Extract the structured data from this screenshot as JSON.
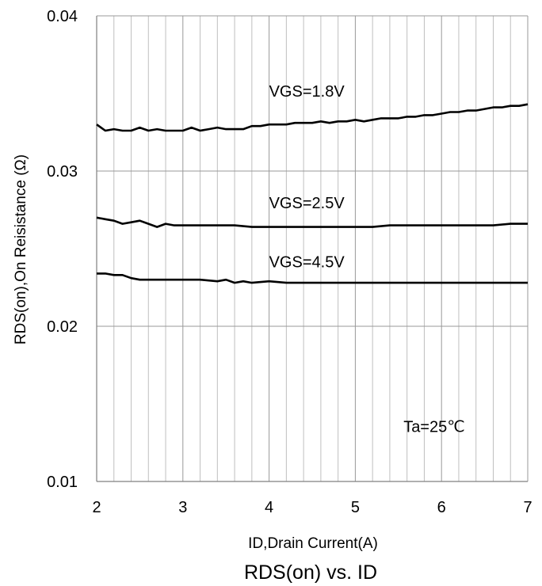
{
  "chart_data": {
    "type": "line",
    "title": "RDS(on) vs. ID",
    "xlabel": "ID,Drain Current(A)",
    "ylabel": "RDS(on),On Reisistance (Ω)",
    "xlim": [
      2,
      7
    ],
    "ylim": [
      0.01,
      0.04
    ],
    "x_ticks": [
      2,
      3,
      4,
      5,
      6,
      7
    ],
    "x_tick_labels": [
      "2",
      "3",
      "4",
      "5",
      "6",
      "7"
    ],
    "y_ticks": [
      0.01,
      0.02,
      0.03,
      0.04
    ],
    "y_tick_labels": [
      "0.01",
      "0.02",
      "0.03",
      "0.04"
    ],
    "grid": true,
    "annotation": "Ta=25℃",
    "series": [
      {
        "name": "VGS=1.8V",
        "x": [
          2.0,
          2.1,
          2.2,
          2.3,
          2.4,
          2.5,
          2.6,
          2.7,
          2.8,
          2.9,
          3.0,
          3.1,
          3.2,
          3.3,
          3.4,
          3.5,
          3.6,
          3.7,
          3.8,
          3.9,
          4.0,
          4.1,
          4.2,
          4.3,
          4.4,
          4.5,
          4.6,
          4.7,
          4.8,
          4.9,
          5.0,
          5.1,
          5.2,
          5.3,
          5.4,
          5.5,
          5.6,
          5.7,
          5.8,
          5.9,
          6.0,
          6.1,
          6.2,
          6.3,
          6.4,
          6.5,
          6.6,
          6.7,
          6.8,
          6.9,
          7.0
        ],
        "values": [
          0.033,
          0.0326,
          0.0327,
          0.0326,
          0.0326,
          0.0328,
          0.0326,
          0.0327,
          0.0326,
          0.0326,
          0.0326,
          0.0328,
          0.0326,
          0.0327,
          0.0328,
          0.0327,
          0.0327,
          0.0327,
          0.0329,
          0.0329,
          0.033,
          0.033,
          0.033,
          0.0331,
          0.0331,
          0.0331,
          0.0332,
          0.0331,
          0.0332,
          0.0332,
          0.0333,
          0.0332,
          0.0333,
          0.0334,
          0.0334,
          0.0334,
          0.0335,
          0.0335,
          0.0336,
          0.0336,
          0.0337,
          0.0338,
          0.0338,
          0.0339,
          0.0339,
          0.034,
          0.0341,
          0.0341,
          0.0342,
          0.0342,
          0.0343
        ]
      },
      {
        "name": "VGS=2.5V",
        "x": [
          2.0,
          2.1,
          2.2,
          2.3,
          2.4,
          2.5,
          2.6,
          2.7,
          2.8,
          2.9,
          3.0,
          3.2,
          3.4,
          3.6,
          3.8,
          4.0,
          4.2,
          4.4,
          4.6,
          4.8,
          5.0,
          5.2,
          5.4,
          5.6,
          5.8,
          6.0,
          6.2,
          6.4,
          6.6,
          6.8,
          7.0
        ],
        "values": [
          0.027,
          0.0269,
          0.0268,
          0.0266,
          0.0267,
          0.0268,
          0.0266,
          0.0264,
          0.0266,
          0.0265,
          0.0265,
          0.0265,
          0.0265,
          0.0265,
          0.0264,
          0.0264,
          0.0264,
          0.0264,
          0.0264,
          0.0264,
          0.0264,
          0.0264,
          0.0265,
          0.0265,
          0.0265,
          0.0265,
          0.0265,
          0.0265,
          0.0265,
          0.0266,
          0.0266
        ]
      },
      {
        "name": "VGS=4.5V",
        "x": [
          2.0,
          2.1,
          2.2,
          2.3,
          2.4,
          2.5,
          2.6,
          2.7,
          2.8,
          2.9,
          3.0,
          3.2,
          3.4,
          3.5,
          3.6,
          3.7,
          3.8,
          4.0,
          4.2,
          4.4,
          4.6,
          4.8,
          5.0,
          5.2,
          5.4,
          5.6,
          5.8,
          6.0,
          6.2,
          6.4,
          6.6,
          6.8,
          7.0
        ],
        "values": [
          0.0234,
          0.0234,
          0.0233,
          0.0233,
          0.0231,
          0.023,
          0.023,
          0.023,
          0.023,
          0.023,
          0.023,
          0.023,
          0.0229,
          0.023,
          0.0228,
          0.0229,
          0.0228,
          0.0229,
          0.0228,
          0.0228,
          0.0228,
          0.0228,
          0.0228,
          0.0228,
          0.0228,
          0.0228,
          0.0228,
          0.0228,
          0.0228,
          0.0228,
          0.0228,
          0.0228,
          0.0228
        ]
      }
    ],
    "series_label_positions": [
      {
        "x": 4.0,
        "y": 0.0348
      },
      {
        "x": 4.0,
        "y": 0.0276
      },
      {
        "x": 4.0,
        "y": 0.0238
      }
    ],
    "annotation_position": {
      "x": 6.0,
      "y": 0.0132
    }
  },
  "colors": {
    "line": "#000000",
    "grid_major": "#999999",
    "grid_minor": "#bfbfbf",
    "axis": "#808080"
  }
}
